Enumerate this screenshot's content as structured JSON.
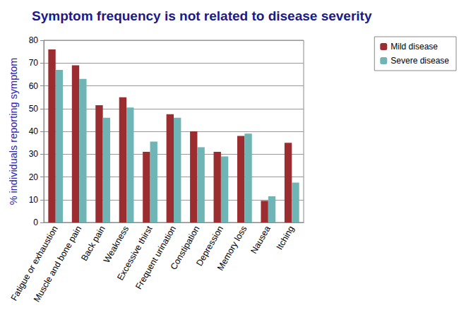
{
  "chart_data": {
    "type": "bar",
    "title": "Symptom frequency is not related to disease severity",
    "y_label": "% individuals reporting symptom",
    "categories": [
      "Fatigue or exhaustion",
      "Muscle and bone pain",
      "Back pain",
      "Weakness",
      "Excessive thirst",
      "Frequent urination",
      "Constipation",
      "Depression",
      "Memory loss",
      "Nausea",
      "Itching"
    ],
    "series": [
      {
        "name": "Mild disease",
        "color": "#9b2d30",
        "values": [
          76,
          69,
          51.5,
          55,
          31,
          47.5,
          40,
          31,
          38,
          9.5,
          35
        ]
      },
      {
        "name": "Severe disease",
        "color": "#6fb5b5",
        "values": [
          67,
          63,
          46,
          50.5,
          35.5,
          46,
          33,
          29,
          39,
          11.5,
          17.5
        ]
      }
    ],
    "ylim": [
      0,
      80
    ],
    "yticks": [
      0,
      10,
      20,
      30,
      40,
      50,
      60,
      70,
      80
    ],
    "grid": true,
    "legend": "right"
  }
}
